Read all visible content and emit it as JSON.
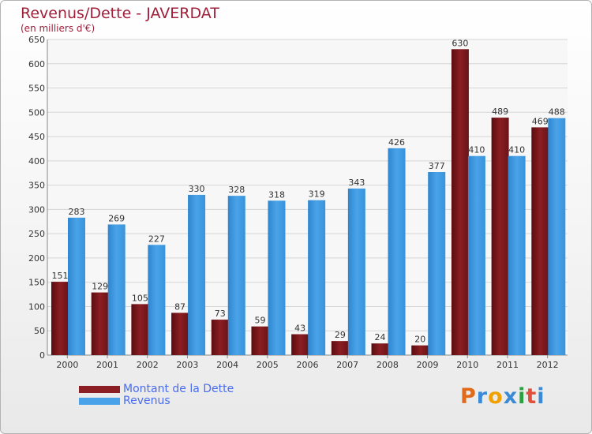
{
  "chart_data": {
    "type": "bar",
    "title": "Revenus/Dette - JAVERDAT",
    "subtitle": "(en milliers d'€)",
    "categories": [
      "2000",
      "2001",
      "2002",
      "2003",
      "2004",
      "2005",
      "2006",
      "2007",
      "2008",
      "2009",
      "2010",
      "2011",
      "2012"
    ],
    "series": [
      {
        "name": "Montant de la Dette",
        "color": "#8b1e22",
        "values": [
          151,
          129,
          105,
          87,
          73,
          59,
          43,
          29,
          24,
          20,
          630,
          489,
          469
        ]
      },
      {
        "name": "Revenus",
        "color": "#4aa3e8",
        "values": [
          283,
          269,
          227,
          330,
          328,
          318,
          319,
          343,
          426,
          377,
          410,
          410,
          488
        ]
      }
    ],
    "ylim": [
      0,
      650
    ],
    "yticks": [
      0,
      50,
      100,
      150,
      200,
      250,
      300,
      350,
      400,
      450,
      500,
      550,
      600,
      650
    ],
    "grid": true,
    "legend": "bottom-left"
  },
  "logo": {
    "letters": [
      "P",
      "r",
      "o",
      "x",
      "i",
      "t",
      "i"
    ],
    "colors": [
      "#e06a1a",
      "#3a8ad8",
      "#f0a000",
      "#3a8ad8",
      "#2aa040",
      "#e0503a",
      "#3a8ad8"
    ]
  }
}
